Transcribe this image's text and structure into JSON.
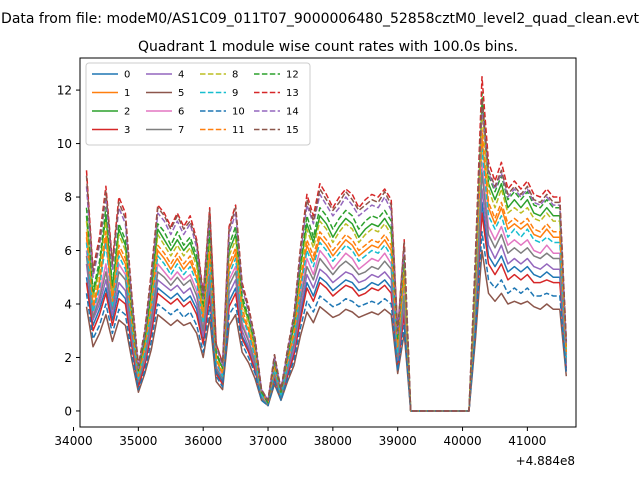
{
  "chart_data": {
    "type": "line",
    "suptitle": "Data from file: modeM0/AS1C09_011T07_9000006480_52858cztM0_level2_quad_clean.evt",
    "title": "Quadrant 1 module wise count rates with 100.0s bins.",
    "xlabel": "",
    "ylabel": "",
    "x_offset_label": "+4.884e8",
    "xlim": [
      34100,
      41750
    ],
    "ylim": [
      -0.6,
      13.2
    ],
    "xticks": [
      34000,
      35000,
      36000,
      37000,
      38000,
      39000,
      40000,
      41000
    ],
    "xtick_labels": [
      "34000",
      "35000",
      "36000",
      "37000",
      "38000",
      "39000",
      "40000",
      "41000"
    ],
    "yticks": [
      0,
      2,
      4,
      6,
      8,
      10,
      12
    ],
    "ytick_labels": [
      "0",
      "2",
      "4",
      "6",
      "8",
      "10",
      "12"
    ],
    "grid": false,
    "legend": {
      "placement": "top-left",
      "ncol": 4
    },
    "x": [
      34200,
      34300,
      34400,
      34500,
      34600,
      34700,
      34800,
      34900,
      35000,
      35100,
      35200,
      35300,
      35400,
      35500,
      35600,
      35700,
      35800,
      35900,
      36000,
      36100,
      36200,
      36300,
      36400,
      36500,
      36600,
      36700,
      36800,
      36900,
      37000,
      37100,
      37200,
      37300,
      37400,
      37500,
      37600,
      37700,
      37800,
      37900,
      38000,
      38100,
      38200,
      38300,
      38400,
      38500,
      38600,
      38700,
      38800,
      38900,
      39000,
      39100,
      39200,
      40100,
      40200,
      40300,
      40400,
      40500,
      40600,
      40700,
      40800,
      40900,
      41000,
      41100,
      41200,
      41300,
      41400,
      41500,
      41600
    ],
    "series": [
      {
        "name": "0",
        "color": "#1f77b4",
        "dash": "solid",
        "values": [
          5.0,
          3.2,
          3.8,
          4.6,
          3.4,
          4.5,
          4.2,
          2.5,
          1.0,
          1.8,
          3.0,
          4.6,
          4.4,
          4.2,
          4.4,
          4.1,
          4.3,
          3.8,
          2.6,
          4.5,
          1.5,
          1.1,
          4.1,
          4.6,
          2.8,
          2.3,
          1.6,
          0.5,
          0.2,
          1.3,
          0.5,
          1.4,
          2.2,
          3.6,
          4.8,
          4.3,
          5.0,
          4.8,
          4.5,
          4.7,
          4.9,
          4.8,
          4.5,
          4.6,
          4.8,
          4.7,
          4.9,
          4.6,
          1.8,
          3.8,
          0.0,
          0.0,
          3.5,
          7.8,
          5.8,
          5.4,
          5.8,
          5.2,
          5.4,
          5.2,
          5.4,
          5.1,
          5.0,
          5.2,
          5.0,
          5.0,
          1.6
        ]
      },
      {
        "name": "1",
        "color": "#ff7f0e",
        "dash": "solid",
        "values": [
          6.5,
          3.8,
          4.8,
          6.5,
          4.0,
          6.0,
          5.5,
          3.2,
          1.3,
          2.3,
          3.9,
          6.0,
          5.7,
          5.3,
          5.7,
          5.3,
          5.6,
          5.0,
          3.4,
          5.8,
          1.9,
          1.4,
          5.3,
          5.9,
          3.6,
          3.0,
          2.1,
          0.6,
          0.3,
          1.6,
          0.6,
          1.8,
          2.8,
          4.7,
          6.2,
          5.6,
          6.5,
          6.2,
          5.8,
          6.1,
          6.4,
          6.2,
          5.8,
          6.0,
          6.2,
          6.1,
          6.4,
          6.0,
          2.3,
          5.0,
          0.0,
          0.0,
          4.5,
          10.2,
          7.6,
          7.0,
          7.6,
          6.8,
          7.0,
          6.8,
          7.0,
          6.6,
          6.5,
          6.8,
          6.5,
          6.5,
          2.1
        ]
      },
      {
        "name": "2",
        "color": "#2ca02c",
        "dash": "solid",
        "values": [
          7.3,
          4.3,
          5.4,
          7.3,
          4.5,
          6.8,
          6.2,
          3.6,
          1.5,
          2.6,
          4.4,
          6.8,
          6.4,
          6.0,
          6.4,
          6.0,
          6.3,
          5.6,
          3.8,
          6.5,
          2.1,
          1.6,
          6.0,
          6.6,
          4.1,
          3.4,
          2.4,
          0.7,
          0.3,
          1.8,
          0.7,
          2.0,
          3.2,
          5.3,
          7.0,
          6.3,
          7.3,
          7.0,
          6.5,
          6.9,
          7.2,
          7.0,
          6.5,
          6.8,
          7.0,
          6.9,
          7.2,
          6.8,
          2.6,
          5.6,
          0.0,
          0.0,
          5.1,
          11.5,
          8.5,
          7.9,
          8.5,
          7.6,
          7.9,
          7.6,
          7.9,
          7.4,
          7.3,
          7.6,
          7.3,
          7.3,
          2.4
        ]
      },
      {
        "name": "3",
        "color": "#d62728",
        "dash": "solid",
        "values": [
          4.8,
          3.0,
          3.6,
          4.4,
          3.2,
          4.2,
          4.0,
          2.4,
          0.9,
          1.7,
          2.9,
          4.4,
          4.2,
          4.0,
          4.2,
          3.9,
          4.1,
          3.6,
          2.5,
          4.3,
          1.4,
          1.0,
          3.9,
          4.4,
          2.7,
          2.2,
          1.5,
          0.5,
          0.2,
          1.2,
          0.5,
          1.3,
          2.1,
          3.4,
          4.6,
          4.1,
          4.8,
          4.6,
          4.3,
          4.5,
          4.7,
          4.6,
          4.3,
          4.4,
          4.6,
          4.5,
          4.7,
          4.4,
          1.7,
          3.6,
          0.0,
          0.0,
          3.3,
          7.4,
          5.5,
          5.1,
          5.5,
          4.9,
          5.1,
          4.9,
          5.1,
          4.8,
          4.8,
          4.9,
          4.8,
          4.8,
          1.5
        ]
      },
      {
        "name": "4",
        "color": "#9467bd",
        "dash": "solid",
        "values": [
          5.5,
          3.4,
          4.0,
          4.9,
          3.6,
          4.8,
          4.5,
          2.7,
          1.1,
          1.9,
          3.2,
          4.9,
          4.7,
          4.5,
          4.7,
          4.4,
          4.6,
          4.0,
          2.8,
          4.8,
          1.6,
          1.2,
          4.4,
          4.9,
          3.0,
          2.4,
          1.7,
          0.5,
          0.2,
          1.4,
          0.5,
          1.5,
          2.3,
          3.8,
          5.1,
          4.6,
          5.3,
          5.1,
          4.8,
          5.0,
          5.2,
          5.1,
          4.8,
          4.9,
          5.1,
          5.0,
          5.2,
          4.9,
          1.9,
          4.0,
          0.0,
          0.0,
          3.7,
          8.3,
          6.2,
          5.7,
          6.2,
          5.5,
          5.7,
          5.5,
          5.7,
          5.4,
          5.3,
          5.5,
          5.3,
          5.3,
          1.7
        ]
      },
      {
        "name": "5",
        "color": "#8c564b",
        "dash": "solid",
        "values": [
          3.9,
          2.4,
          2.9,
          3.6,
          2.6,
          3.4,
          3.2,
          1.9,
          0.7,
          1.4,
          2.3,
          3.6,
          3.4,
          3.2,
          3.4,
          3.2,
          3.3,
          2.9,
          2.0,
          3.5,
          1.1,
          0.8,
          3.2,
          3.6,
          2.2,
          1.8,
          1.2,
          0.4,
          0.2,
          1.0,
          0.4,
          1.1,
          1.7,
          2.8,
          3.7,
          3.3,
          3.9,
          3.7,
          3.5,
          3.6,
          3.8,
          3.7,
          3.5,
          3.6,
          3.7,
          3.6,
          3.8,
          3.6,
          1.4,
          2.9,
          0.0,
          0.0,
          2.7,
          6.0,
          4.4,
          4.1,
          4.4,
          4.0,
          4.1,
          4.0,
          4.1,
          3.9,
          3.8,
          4.0,
          3.8,
          3.8,
          1.3
        ]
      },
      {
        "name": "6",
        "color": "#e377c2",
        "dash": "solid",
        "values": [
          6.0,
          3.6,
          4.4,
          5.5,
          3.9,
          5.5,
          5.1,
          3.0,
          1.2,
          2.1,
          3.6,
          5.5,
          5.2,
          4.9,
          5.2,
          4.9,
          5.1,
          4.5,
          3.1,
          5.3,
          1.7,
          1.3,
          4.9,
          5.4,
          3.3,
          2.7,
          1.9,
          0.6,
          0.3,
          1.5,
          0.6,
          1.7,
          2.6,
          4.3,
          5.7,
          5.1,
          6.0,
          5.7,
          5.3,
          5.6,
          5.9,
          5.7,
          5.3,
          5.5,
          5.7,
          5.6,
          5.9,
          5.5,
          2.1,
          4.5,
          0.0,
          0.0,
          4.1,
          9.3,
          6.9,
          6.4,
          6.9,
          6.2,
          6.4,
          6.2,
          6.4,
          6.0,
          5.9,
          6.2,
          5.9,
          5.9,
          1.9
        ]
      },
      {
        "name": "7",
        "color": "#7f7f7f",
        "dash": "solid",
        "values": [
          5.8,
          3.5,
          4.2,
          5.2,
          3.8,
          5.2,
          4.9,
          2.9,
          1.1,
          2.0,
          3.4,
          5.2,
          5.0,
          4.7,
          5.0,
          4.7,
          4.9,
          4.3,
          3.0,
          5.1,
          1.6,
          1.2,
          4.7,
          5.2,
          3.2,
          2.6,
          1.8,
          0.5,
          0.2,
          1.4,
          0.5,
          1.6,
          2.5,
          4.1,
          5.4,
          4.9,
          5.7,
          5.4,
          5.1,
          5.4,
          5.6,
          5.4,
          5.1,
          5.2,
          5.4,
          5.3,
          5.6,
          5.3,
          2.0,
          4.3,
          0.0,
          0.0,
          3.9,
          8.9,
          6.6,
          6.1,
          6.6,
          5.9,
          6.1,
          5.9,
          6.1,
          5.8,
          5.7,
          5.9,
          5.7,
          5.7,
          1.8
        ]
      },
      {
        "name": "8",
        "color": "#bcbd22",
        "dash": "dashed",
        "values": [
          7.1,
          4.2,
          5.2,
          7.1,
          4.4,
          6.6,
          6.0,
          3.5,
          1.4,
          2.5,
          4.3,
          6.6,
          6.2,
          5.8,
          6.2,
          5.8,
          6.1,
          5.4,
          3.7,
          6.3,
          2.0,
          1.5,
          5.8,
          6.4,
          4.0,
          3.3,
          2.3,
          0.7,
          0.3,
          1.8,
          0.7,
          2.0,
          3.1,
          5.1,
          6.8,
          6.1,
          7.1,
          6.8,
          6.3,
          6.7,
          7.0,
          6.8,
          6.3,
          6.6,
          6.8,
          6.7,
          7.0,
          6.6,
          2.5,
          5.4,
          0.0,
          0.0,
          4.9,
          11.1,
          8.3,
          7.6,
          8.3,
          7.4,
          7.6,
          7.4,
          7.6,
          7.2,
          7.1,
          7.4,
          7.1,
          7.1,
          2.3
        ]
      },
      {
        "name": "9",
        "color": "#17becf",
        "dash": "dashed",
        "values": [
          6.3,
          3.7,
          4.6,
          6.3,
          3.9,
          5.8,
          5.3,
          3.1,
          1.2,
          2.2,
          3.8,
          5.8,
          5.5,
          5.1,
          5.5,
          5.1,
          5.4,
          4.8,
          3.3,
          5.6,
          1.8,
          1.3,
          5.1,
          5.7,
          3.5,
          2.9,
          2.0,
          0.6,
          0.3,
          1.6,
          0.6,
          1.7,
          2.7,
          4.5,
          6.0,
          5.4,
          6.3,
          6.0,
          5.6,
          5.9,
          6.2,
          6.0,
          5.6,
          5.8,
          6.0,
          5.9,
          6.2,
          5.8,
          2.2,
          4.8,
          0.0,
          0.0,
          4.4,
          9.8,
          7.3,
          6.8,
          7.3,
          6.5,
          6.8,
          6.5,
          6.8,
          6.4,
          6.3,
          6.5,
          6.3,
          6.3,
          2.0
        ]
      },
      {
        "name": "10",
        "color": "#1f77b4",
        "dash": "dashed",
        "values": [
          4.4,
          2.7,
          3.2,
          4.0,
          2.9,
          3.8,
          3.6,
          2.1,
          0.8,
          1.5,
          2.6,
          4.0,
          3.8,
          3.6,
          3.8,
          3.5,
          3.7,
          3.2,
          2.2,
          3.9,
          1.3,
          0.9,
          3.6,
          4.0,
          2.5,
          2.0,
          1.4,
          0.4,
          0.2,
          1.1,
          0.4,
          1.2,
          1.9,
          3.1,
          4.1,
          3.7,
          4.3,
          4.1,
          3.9,
          4.0,
          4.2,
          4.1,
          3.9,
          4.0,
          4.1,
          4.0,
          4.2,
          4.0,
          1.5,
          3.2,
          0.0,
          0.0,
          3.0,
          6.7,
          4.9,
          4.6,
          4.9,
          4.4,
          4.6,
          4.4,
          4.6,
          4.3,
          4.3,
          4.4,
          4.3,
          4.3,
          1.4
        ]
      },
      {
        "name": "11",
        "color": "#ff7f0e",
        "dash": "dashed",
        "values": [
          6.7,
          4.0,
          4.9,
          6.7,
          4.1,
          6.2,
          5.7,
          3.3,
          1.3,
          2.4,
          4.0,
          6.2,
          5.9,
          5.5,
          5.9,
          5.5,
          5.8,
          5.1,
          3.5,
          6.0,
          1.9,
          1.4,
          5.5,
          6.1,
          3.8,
          3.1,
          2.2,
          0.7,
          0.3,
          1.7,
          0.7,
          1.9,
          2.9,
          4.8,
          6.4,
          5.8,
          6.7,
          6.4,
          6.0,
          6.3,
          6.6,
          6.4,
          6.0,
          6.2,
          6.4,
          6.3,
          6.6,
          6.2,
          2.4,
          5.1,
          0.0,
          0.0,
          4.7,
          10.5,
          7.8,
          7.2,
          7.8,
          7.0,
          7.2,
          7.0,
          7.2,
          6.8,
          6.7,
          7.0,
          6.7,
          6.7,
          2.2
        ]
      },
      {
        "name": "12",
        "color": "#2ca02c",
        "dash": "dashed",
        "values": [
          7.6,
          4.5,
          5.6,
          7.6,
          4.7,
          7.0,
          6.4,
          3.7,
          1.5,
          2.7,
          4.6,
          7.0,
          6.7,
          6.2,
          6.7,
          6.2,
          6.5,
          5.8,
          4.0,
          6.8,
          2.2,
          1.6,
          6.2,
          6.9,
          4.3,
          3.5,
          2.5,
          0.7,
          0.3,
          1.9,
          0.7,
          2.1,
          3.3,
          5.5,
          7.3,
          6.5,
          7.6,
          7.3,
          6.8,
          7.2,
          7.5,
          7.3,
          6.8,
          7.1,
          7.3,
          7.2,
          7.5,
          7.1,
          2.7,
          5.8,
          0.0,
          0.0,
          5.3,
          11.9,
          8.8,
          8.2,
          8.8,
          7.9,
          8.2,
          7.9,
          8.2,
          7.7,
          7.6,
          7.9,
          7.6,
          7.6,
          2.5
        ]
      },
      {
        "name": "13",
        "color": "#d62728",
        "dash": "dashed",
        "values": [
          9.0,
          5.3,
          6.5,
          8.4,
          5.6,
          8.0,
          7.4,
          4.3,
          1.7,
          3.0,
          5.2,
          7.7,
          7.4,
          6.9,
          7.4,
          6.9,
          7.3,
          6.4,
          4.4,
          7.6,
          2.5,
          1.8,
          6.9,
          7.7,
          4.8,
          3.9,
          2.7,
          0.8,
          0.4,
          2.1,
          0.8,
          2.3,
          3.6,
          6.1,
          8.1,
          7.3,
          8.5,
          8.1,
          7.6,
          8.0,
          8.3,
          8.1,
          7.6,
          7.9,
          8.1,
          8.0,
          8.3,
          7.9,
          3.0,
          6.4,
          0.0,
          0.0,
          5.9,
          12.5,
          9.3,
          8.6,
          9.3,
          8.3,
          8.6,
          8.3,
          8.6,
          8.1,
          8.0,
          8.3,
          8.0,
          8.0,
          2.6
        ]
      },
      {
        "name": "14",
        "color": "#9467bd",
        "dash": "dashed",
        "values": [
          8.4,
          5.0,
          6.2,
          8.0,
          5.3,
          7.6,
          7.0,
          4.1,
          1.6,
          2.9,
          4.9,
          7.4,
          7.1,
          6.6,
          7.1,
          6.6,
          7.0,
          6.1,
          4.2,
          7.3,
          2.4,
          1.7,
          6.6,
          7.4,
          4.6,
          3.7,
          2.6,
          0.8,
          0.4,
          2.0,
          0.8,
          2.2,
          3.5,
          5.8,
          7.7,
          7.0,
          8.1,
          7.7,
          7.3,
          7.6,
          8.0,
          7.7,
          7.3,
          7.5,
          7.7,
          7.6,
          8.0,
          7.5,
          2.9,
          6.1,
          0.0,
          0.0,
          5.6,
          11.3,
          8.9,
          8.3,
          8.9,
          8.0,
          8.3,
          8.0,
          8.3,
          7.8,
          7.7,
          8.0,
          7.7,
          7.7,
          2.5
        ]
      },
      {
        "name": "15",
        "color": "#8c564b",
        "dash": "dashed",
        "values": [
          8.8,
          5.2,
          6.3,
          8.2,
          5.5,
          7.8,
          7.2,
          4.2,
          1.7,
          3.0,
          5.1,
          7.6,
          7.3,
          6.8,
          7.3,
          6.8,
          7.1,
          6.3,
          4.3,
          7.5,
          2.5,
          1.8,
          6.8,
          7.6,
          4.7,
          3.8,
          2.7,
          0.8,
          0.4,
          2.1,
          0.8,
          2.3,
          3.6,
          6.0,
          7.9,
          7.1,
          8.3,
          7.9,
          7.5,
          7.8,
          8.2,
          7.9,
          7.5,
          7.7,
          7.9,
          7.8,
          8.2,
          7.7,
          3.0,
          6.3,
          0.0,
          0.0,
          5.8,
          11.7,
          9.0,
          8.4,
          9.0,
          8.1,
          8.4,
          8.1,
          8.4,
          7.9,
          7.8,
          8.1,
          7.8,
          7.8,
          2.6
        ]
      }
    ]
  }
}
